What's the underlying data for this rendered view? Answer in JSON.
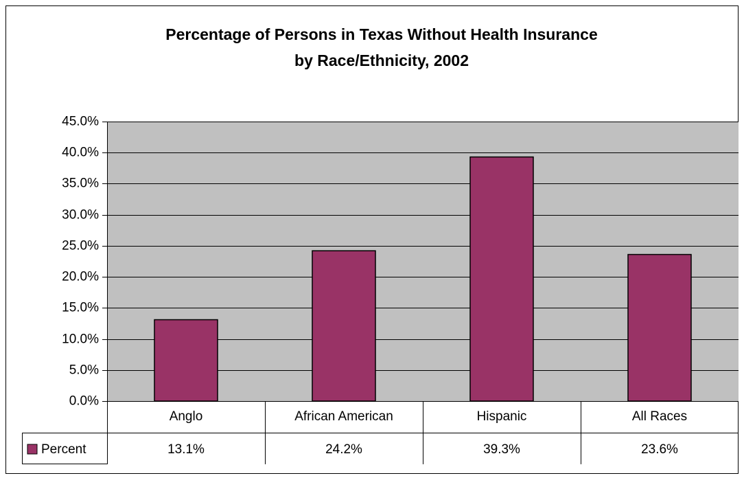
{
  "chart_data": {
    "type": "bar",
    "title": [
      "Percentage of Persons in Texas Without Health Insurance",
      "by Race/Ethnicity, 2002"
    ],
    "categories": [
      "Anglo",
      "African American",
      "Hispanic",
      "All Races"
    ],
    "series": [
      {
        "name": "Percent",
        "color": "#993366",
        "values": [
          13.1,
          24.2,
          39.3,
          23.6
        ],
        "value_labels": [
          "13.1%",
          "24.2%",
          "39.3%",
          "23.6%"
        ]
      }
    ],
    "ylim": [
      0,
      45
    ],
    "yticks": [
      {
        "value": 0,
        "label": "0.0%"
      },
      {
        "value": 5,
        "label": "5.0%"
      },
      {
        "value": 10,
        "label": "10.0%"
      },
      {
        "value": 15,
        "label": "15.0%"
      },
      {
        "value": 20,
        "label": "20.0%"
      },
      {
        "value": 25,
        "label": "25.0%"
      },
      {
        "value": 30,
        "label": "30.0%"
      },
      {
        "value": 35,
        "label": "35.0%"
      },
      {
        "value": 40,
        "label": "40.0%"
      },
      {
        "value": 45,
        "label": "45.0%"
      }
    ],
    "grid": true,
    "plot_background": "#c0c0c0"
  }
}
